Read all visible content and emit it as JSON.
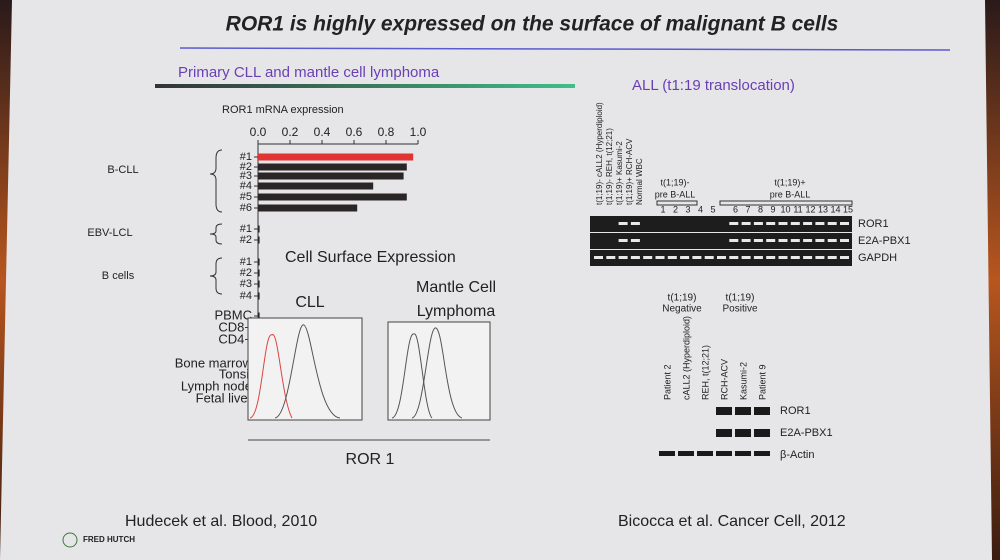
{
  "title": "ROR1 is highly expressed on the surface of malignant B cells",
  "left": {
    "heading": "Primary CLL and mantle cell lymphoma",
    "mrna_chart": {
      "type": "bar",
      "title": "ROR1 mRNA expression",
      "xlim": [
        0,
        1
      ],
      "xticks": [
        {
          "value": 0,
          "label": "0.0"
        },
        {
          "value": 0.2,
          "label": "0.2"
        },
        {
          "value": 0.4,
          "label": "0.4"
        },
        {
          "value": 0.6,
          "label": "0.6"
        },
        {
          "value": 0.8,
          "label": "0.8"
        },
        {
          "value": 1,
          "label": "1.0"
        }
      ],
      "groups": [
        "B-CLL",
        "EBV-LCL",
        "B cells"
      ],
      "categories": [
        "#1",
        "#2",
        "#3",
        "#4",
        "#5",
        "#6",
        "#1",
        "#2",
        "#1",
        "#2",
        "#3",
        "#4",
        "PBMC",
        "CD8+",
        "CD4+",
        "Bone marrow",
        "Tonsil",
        "Lymph node",
        "Fetal liver"
      ],
      "values": [
        0.97,
        0.93,
        0.91,
        0.72,
        0.93,
        0.62,
        0.01,
        0.01,
        0.01,
        0.01,
        0.01,
        0.01,
        0.01,
        0.01,
        0.01,
        0.01,
        0.01,
        0.01,
        0.01
      ],
      "colors": [
        "#e23434",
        "#2a2626",
        "#2a2626",
        "#2a2626",
        "#2a2626",
        "#2a2626",
        "#2a2626",
        "#2a2626",
        "#2a2626",
        "#2a2626",
        "#2a2626",
        "#2a2626",
        "#2a2626",
        "#2a2626",
        "#2a2626",
        "#2a2626",
        "#2a2626",
        "#2a2626",
        "#2a2626"
      ]
    },
    "flow": {
      "heading": "Cell Surface Expression",
      "cll_label": "CLL",
      "mcl_label": [
        "Mantle Cell",
        "Lymphoma"
      ],
      "x_axis_label": "ROR 1"
    },
    "citation": "Hudecek et al. Blood, 2010"
  },
  "right": {
    "heading": "ALL (t1:19 translocation)",
    "pcr": {
      "lanes": [
        "t(1;19)- cALL2 (Hyperdiploid)",
        "t(1;19)- REH, t(12;21)",
        "t(1;19)+ Kasumi-2",
        "t(1;19)+ RCH-ACV",
        "Normal WBC"
      ],
      "negative_group": [
        "t(1;19)-",
        "pre B-ALL"
      ],
      "positive_group": [
        "t(1;19)+",
        "pre B-ALL"
      ],
      "patients": [
        1,
        2,
        3,
        4,
        5,
        6,
        7,
        8,
        9,
        10,
        11,
        12,
        13,
        14,
        15
      ],
      "rows": [
        "ROR1",
        "E2A-PBX1",
        "GAPDH"
      ]
    },
    "western": {
      "negative_group": [
        "t(1;19)",
        "Negative"
      ],
      "positive_group": [
        "t(1;19)",
        "Positive"
      ],
      "lanes": [
        "Patient 2",
        "cALL2 (Hyperdiploid)",
        "REH, t(12;21)",
        "RCH-ACV",
        "Kasumi-2",
        "Patient 9"
      ],
      "rows": [
        "ROR1",
        "E2A-PBX1",
        "β-Actin"
      ]
    },
    "citation": "Bicocca et al. Cancer Cell, 2012"
  },
  "logo": "FRED HUTCH"
}
